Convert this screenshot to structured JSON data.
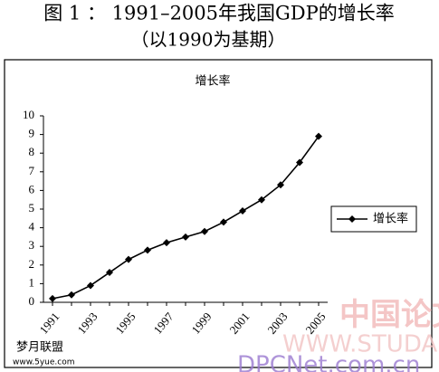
{
  "title": "图 1 ： 1991–2005年我国GDP的增长率",
  "subtitle": "（以1990为基期）",
  "chart_data": {
    "type": "line",
    "title": "增长率",
    "categories": [
      "1991",
      null,
      "1993",
      null,
      "1995",
      null,
      "1997",
      null,
      "1999",
      null,
      "2001",
      null,
      "2003",
      null,
      "2005"
    ],
    "series": [
      {
        "name": "增长率",
        "color": "#000000",
        "values": [
          0.2,
          0.4,
          0.9,
          1.6,
          2.3,
          2.8,
          3.2,
          3.5,
          3.8,
          4.3,
          4.9,
          5.5,
          6.3,
          7.5,
          8.9
        ]
      }
    ],
    "ylim": [
      0,
      10
    ],
    "yticks": [
      0,
      1,
      2,
      3,
      4,
      5,
      6,
      7,
      8,
      9,
      10
    ],
    "grid": false,
    "legend": "right"
  },
  "watermarks": [
    "中国论文下载",
    "WWW.STUDA.",
    "DPCNet.com.cn",
    "梦月联盟",
    "www.5yue.com"
  ]
}
